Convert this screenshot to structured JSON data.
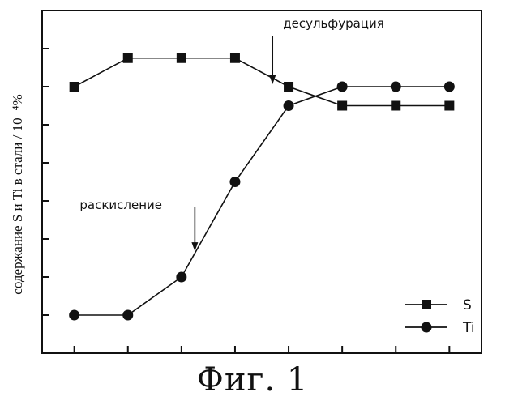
{
  "chart_data": {
    "type": "line",
    "title": "",
    "xlabel": "",
    "ylabel": "содержание S и Ti в стали / 10⁻⁴%",
    "x": [
      1,
      2,
      3,
      4,
      5,
      6,
      7,
      8
    ],
    "xlim": [
      0.4,
      8.6
    ],
    "ylim": [
      0,
      9
    ],
    "yticks": [
      1,
      2,
      3,
      4,
      5,
      6,
      7,
      8,
      9
    ],
    "grid": false,
    "legend": "bottom-right",
    "series": [
      {
        "name": "S",
        "marker": "square",
        "values": [
          7.0,
          7.75,
          7.75,
          7.75,
          7.0,
          6.5,
          6.5,
          6.5
        ]
      },
      {
        "name": "Ti",
        "marker": "circle",
        "values": [
          1.0,
          1.0,
          2.0,
          4.5,
          6.5,
          7.0,
          7.0,
          7.0
        ]
      }
    ],
    "annotations": [
      {
        "text": "десульфурация",
        "x": 4.7,
        "y": 7.0
      },
      {
        "text": "раскисление",
        "x": 3.25,
        "y": 2.7
      }
    ]
  },
  "caption": "Фиг. 1"
}
